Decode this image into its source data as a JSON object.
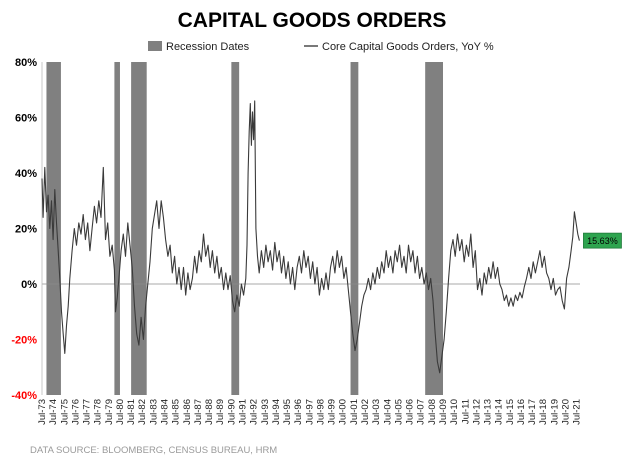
{
  "chart_data": {
    "type": "line",
    "title": "CAPITAL GOODS ORDERS",
    "source": "DATA SOURCE: BLOOMBERG, CENSUS BUREAU, HRM",
    "legend": [
      {
        "name": "Recession Dates",
        "kind": "bar",
        "color": "#808080"
      },
      {
        "name": "Core Capital Goods Orders, YoY %",
        "kind": "line",
        "color": "#404040"
      }
    ],
    "legend_placement": "top",
    "ylim": [
      -40,
      80
    ],
    "yticks": [
      {
        "value": 80,
        "label": "80%",
        "color": "#000000"
      },
      {
        "value": 60,
        "label": "60%",
        "color": "#000000"
      },
      {
        "value": 40,
        "label": "40%",
        "color": "#000000"
      },
      {
        "value": 20,
        "label": "20%",
        "color": "#000000"
      },
      {
        "value": 0,
        "label": "0%",
        "color": "#000000"
      },
      {
        "value": -20,
        "label": "-20%",
        "color": "#ff0000"
      },
      {
        "value": -40,
        "label": "-40%",
        "color": "#ff0000"
      }
    ],
    "xlim": [
      1973.5,
      2021.8
    ],
    "xtick_labels": [
      "Jul-73",
      "Jul-74",
      "Jul-75",
      "Jul-76",
      "Jul-77",
      "Jul-78",
      "Jul-79",
      "Jul-80",
      "Jul-81",
      "Jul-82",
      "Jul-83",
      "Jul-84",
      "Jul-85",
      "Jul-86",
      "Jul-87",
      "Jul-88",
      "Jul-89",
      "Jul-90",
      "Jul-91",
      "Jul-92",
      "Jul-93",
      "Jul-94",
      "Jul-95",
      "Jul-96",
      "Jul-97",
      "Jul-98",
      "Jul-99",
      "Jul-00",
      "Jul-01",
      "Jul-02",
      "Jul-03",
      "Jul-04",
      "Jul-05",
      "Jul-06",
      "Jul-07",
      "Jul-08",
      "Jul-09",
      "Jul-10",
      "Jul-11",
      "Jul-12",
      "Jul-13",
      "Jul-14",
      "Jul-15",
      "Jul-16",
      "Jul-17",
      "Jul-18",
      "Jul-19",
      "Jul-20",
      "Jul-21"
    ],
    "recessions": [
      {
        "start": 1973.9,
        "end": 1975.2
      },
      {
        "start": 1980.0,
        "end": 1980.5
      },
      {
        "start": 1981.5,
        "end": 1982.9
      },
      {
        "start": 1990.5,
        "end": 1991.2
      },
      {
        "start": 2001.2,
        "end": 2001.9
      },
      {
        "start": 2007.9,
        "end": 2009.5
      }
    ],
    "series": [
      {
        "name": "Core Capital Goods Orders, YoY %",
        "points": [
          [
            1973.5,
            38
          ],
          [
            1973.6,
            24
          ],
          [
            1973.75,
            42
          ],
          [
            1973.9,
            26
          ],
          [
            1974.05,
            32
          ],
          [
            1974.2,
            20
          ],
          [
            1974.35,
            30
          ],
          [
            1974.5,
            16
          ],
          [
            1974.65,
            34
          ],
          [
            1974.8,
            22
          ],
          [
            1974.95,
            12
          ],
          [
            1975.1,
            2
          ],
          [
            1975.25,
            -10
          ],
          [
            1975.4,
            -18
          ],
          [
            1975.55,
            -25
          ],
          [
            1975.7,
            -15
          ],
          [
            1975.85,
            -8
          ],
          [
            1976.0,
            2
          ],
          [
            1976.2,
            12
          ],
          [
            1976.4,
            20
          ],
          [
            1976.6,
            14
          ],
          [
            1976.8,
            22
          ],
          [
            1977.0,
            18
          ],
          [
            1977.2,
            25
          ],
          [
            1977.4,
            16
          ],
          [
            1977.6,
            22
          ],
          [
            1977.8,
            12
          ],
          [
            1978.0,
            20
          ],
          [
            1978.2,
            28
          ],
          [
            1978.4,
            22
          ],
          [
            1978.6,
            30
          ],
          [
            1978.8,
            24
          ],
          [
            1979.0,
            42
          ],
          [
            1979.2,
            16
          ],
          [
            1979.4,
            22
          ],
          [
            1979.6,
            10
          ],
          [
            1979.8,
            14
          ],
          [
            1980.0,
            5
          ],
          [
            1980.1,
            -10
          ],
          [
            1980.25,
            -5
          ],
          [
            1980.4,
            2
          ],
          [
            1980.6,
            12
          ],
          [
            1980.8,
            18
          ],
          [
            1981.0,
            10
          ],
          [
            1981.2,
            22
          ],
          [
            1981.4,
            14
          ],
          [
            1981.6,
            6
          ],
          [
            1981.8,
            -8
          ],
          [
            1982.0,
            -18
          ],
          [
            1982.2,
            -22
          ],
          [
            1982.4,
            -12
          ],
          [
            1982.6,
            -20
          ],
          [
            1982.8,
            -8
          ],
          [
            1983.0,
            0
          ],
          [
            1983.2,
            8
          ],
          [
            1983.4,
            20
          ],
          [
            1983.6,
            25
          ],
          [
            1983.8,
            30
          ],
          [
            1984.0,
            20
          ],
          [
            1984.2,
            30
          ],
          [
            1984.4,
            24
          ],
          [
            1984.6,
            16
          ],
          [
            1984.8,
            10
          ],
          [
            1985.0,
            14
          ],
          [
            1985.2,
            4
          ],
          [
            1985.4,
            10
          ],
          [
            1985.6,
            0
          ],
          [
            1985.8,
            6
          ],
          [
            1986.0,
            -2
          ],
          [
            1986.2,
            6
          ],
          [
            1986.4,
            -4
          ],
          [
            1986.6,
            4
          ],
          [
            1986.8,
            -2
          ],
          [
            1987.0,
            2
          ],
          [
            1987.2,
            10
          ],
          [
            1987.4,
            4
          ],
          [
            1987.6,
            12
          ],
          [
            1987.8,
            8
          ],
          [
            1988.0,
            18
          ],
          [
            1988.2,
            10
          ],
          [
            1988.4,
            14
          ],
          [
            1988.6,
            6
          ],
          [
            1988.8,
            12
          ],
          [
            1989.0,
            4
          ],
          [
            1989.2,
            10
          ],
          [
            1989.4,
            2
          ],
          [
            1989.6,
            6
          ],
          [
            1989.8,
            -2
          ],
          [
            1990.0,
            4
          ],
          [
            1990.2,
            -2
          ],
          [
            1990.4,
            3
          ],
          [
            1990.6,
            -6
          ],
          [
            1990.8,
            -10
          ],
          [
            1991.0,
            -4
          ],
          [
            1991.2,
            -8
          ],
          [
            1991.4,
            0
          ],
          [
            1991.6,
            -4
          ],
          [
            1991.8,
            2
          ],
          [
            1991.9,
            14
          ],
          [
            1992.0,
            40
          ],
          [
            1992.1,
            55
          ],
          [
            1992.2,
            65
          ],
          [
            1992.3,
            50
          ],
          [
            1992.4,
            62
          ],
          [
            1992.5,
            52
          ],
          [
            1992.6,
            66
          ],
          [
            1992.7,
            20
          ],
          [
            1992.85,
            10
          ],
          [
            1993.0,
            4
          ],
          [
            1993.2,
            12
          ],
          [
            1993.4,
            6
          ],
          [
            1993.6,
            14
          ],
          [
            1993.8,
            8
          ],
          [
            1994.0,
            12
          ],
          [
            1994.2,
            5
          ],
          [
            1994.4,
            15
          ],
          [
            1994.6,
            8
          ],
          [
            1994.8,
            12
          ],
          [
            1995.0,
            4
          ],
          [
            1995.2,
            10
          ],
          [
            1995.4,
            2
          ],
          [
            1995.6,
            8
          ],
          [
            1995.8,
            0
          ],
          [
            1996.0,
            6
          ],
          [
            1996.2,
            -2
          ],
          [
            1996.4,
            6
          ],
          [
            1996.6,
            10
          ],
          [
            1996.8,
            4
          ],
          [
            1997.0,
            12
          ],
          [
            1997.2,
            6
          ],
          [
            1997.4,
            10
          ],
          [
            1997.6,
            2
          ],
          [
            1997.8,
            8
          ],
          [
            1998.0,
            0
          ],
          [
            1998.2,
            6
          ],
          [
            1998.4,
            -4
          ],
          [
            1998.6,
            2
          ],
          [
            1998.8,
            -2
          ],
          [
            1999.0,
            4
          ],
          [
            1999.2,
            -2
          ],
          [
            1999.4,
            6
          ],
          [
            1999.6,
            10
          ],
          [
            1999.8,
            4
          ],
          [
            2000.0,
            12
          ],
          [
            2000.2,
            6
          ],
          [
            2000.4,
            10
          ],
          [
            2000.6,
            2
          ],
          [
            2000.8,
            6
          ],
          [
            2001.0,
            -2
          ],
          [
            2001.2,
            -10
          ],
          [
            2001.4,
            -18
          ],
          [
            2001.6,
            -24
          ],
          [
            2001.8,
            -20
          ],
          [
            2002.0,
            -14
          ],
          [
            2002.2,
            -8
          ],
          [
            2002.4,
            -4
          ],
          [
            2002.6,
            -2
          ],
          [
            2002.8,
            2
          ],
          [
            2003.0,
            -2
          ],
          [
            2003.2,
            4
          ],
          [
            2003.4,
            0
          ],
          [
            2003.6,
            6
          ],
          [
            2003.8,
            2
          ],
          [
            2004.0,
            8
          ],
          [
            2004.2,
            4
          ],
          [
            2004.4,
            12
          ],
          [
            2004.6,
            6
          ],
          [
            2004.8,
            10
          ],
          [
            2005.0,
            4
          ],
          [
            2005.2,
            12
          ],
          [
            2005.4,
            8
          ],
          [
            2005.6,
            14
          ],
          [
            2005.8,
            6
          ],
          [
            2006.0,
            10
          ],
          [
            2006.2,
            4
          ],
          [
            2006.4,
            14
          ],
          [
            2006.6,
            8
          ],
          [
            2006.8,
            12
          ],
          [
            2007.0,
            4
          ],
          [
            2007.2,
            10
          ],
          [
            2007.4,
            2
          ],
          [
            2007.6,
            6
          ],
          [
            2007.8,
            0
          ],
          [
            2008.0,
            4
          ],
          [
            2008.2,
            -2
          ],
          [
            2008.4,
            2
          ],
          [
            2008.6,
            -6
          ],
          [
            2008.8,
            -18
          ],
          [
            2009.0,
            -28
          ],
          [
            2009.2,
            -32
          ],
          [
            2009.4,
            -26
          ],
          [
            2009.6,
            -20
          ],
          [
            2009.8,
            -10
          ],
          [
            2010.0,
            2
          ],
          [
            2010.2,
            12
          ],
          [
            2010.4,
            16
          ],
          [
            2010.6,
            10
          ],
          [
            2010.8,
            18
          ],
          [
            2011.0,
            12
          ],
          [
            2011.2,
            16
          ],
          [
            2011.4,
            8
          ],
          [
            2011.6,
            14
          ],
          [
            2011.8,
            10
          ],
          [
            2012.0,
            18
          ],
          [
            2012.2,
            6
          ],
          [
            2012.4,
            12
          ],
          [
            2012.6,
            -2
          ],
          [
            2012.8,
            2
          ],
          [
            2013.0,
            -4
          ],
          [
            2013.2,
            4
          ],
          [
            2013.4,
            0
          ],
          [
            2013.6,
            6
          ],
          [
            2013.8,
            2
          ],
          [
            2014.0,
            8
          ],
          [
            2014.2,
            2
          ],
          [
            2014.4,
            6
          ],
          [
            2014.6,
            0
          ],
          [
            2014.8,
            -2
          ],
          [
            2015.0,
            -6
          ],
          [
            2015.2,
            -4
          ],
          [
            2015.4,
            -8
          ],
          [
            2015.6,
            -5
          ],
          [
            2015.8,
            -8
          ],
          [
            2016.0,
            -4
          ],
          [
            2016.2,
            -6
          ],
          [
            2016.4,
            -3
          ],
          [
            2016.6,
            -5
          ],
          [
            2016.8,
            -1
          ],
          [
            2017.0,
            2
          ],
          [
            2017.2,
            6
          ],
          [
            2017.4,
            2
          ],
          [
            2017.6,
            8
          ],
          [
            2017.8,
            4
          ],
          [
            2018.0,
            8
          ],
          [
            2018.2,
            12
          ],
          [
            2018.4,
            6
          ],
          [
            2018.6,
            10
          ],
          [
            2018.8,
            4
          ],
          [
            2019.0,
            2
          ],
          [
            2019.2,
            -2
          ],
          [
            2019.4,
            2
          ],
          [
            2019.6,
            -4
          ],
          [
            2019.8,
            -2
          ],
          [
            2020.0,
            -1
          ],
          [
            2020.2,
            -6
          ],
          [
            2020.4,
            -9
          ],
          [
            2020.6,
            2
          ],
          [
            2020.8,
            6
          ],
          [
            2021.0,
            12
          ],
          [
            2021.15,
            17
          ],
          [
            2021.3,
            26
          ],
          [
            2021.45,
            22
          ],
          [
            2021.6,
            18
          ],
          [
            2021.75,
            15.63
          ]
        ]
      }
    ],
    "last_value_label": "15.63%",
    "last_value_color": "#2ea44f",
    "zero_line": true,
    "grid": false
  }
}
